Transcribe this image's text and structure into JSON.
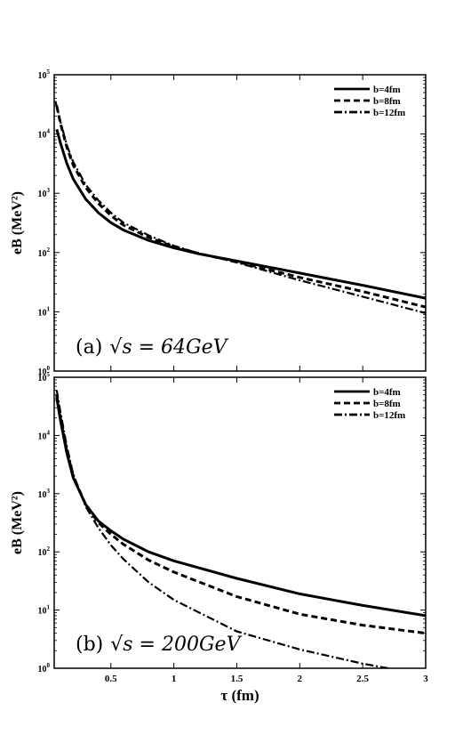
{
  "chart_data": [
    {
      "type": "line",
      "annotation": {
        "prefix": "(a)",
        "math": "√s = 64GeV"
      },
      "xlabel": "τ (fm)",
      "ylabel": "eB (MeV²)",
      "xlim": [
        0.05,
        3
      ],
      "ylim": [
        1,
        100000
      ],
      "yscale": "log",
      "legend": "top-right",
      "series": [
        {
          "name": "b=4fm",
          "style": "solid",
          "x": [
            0.07,
            0.1,
            0.15,
            0.2,
            0.3,
            0.4,
            0.5,
            0.6,
            0.8,
            1.0,
            1.2,
            1.5,
            2.0,
            2.5,
            3.0
          ],
          "y": [
            12000,
            7000,
            3200,
            1750,
            800,
            470,
            320,
            240,
            160,
            120,
            95,
            72,
            45,
            28,
            17
          ]
        },
        {
          "name": "b=8fm",
          "style": "dash",
          "x": [
            0.07,
            0.1,
            0.15,
            0.2,
            0.3,
            0.4,
            0.5,
            0.6,
            0.8,
            1.0,
            1.2,
            1.5,
            2.0,
            2.5,
            3.0
          ],
          "y": [
            30000,
            15000,
            6000,
            3000,
            1250,
            680,
            420,
            290,
            180,
            125,
            96,
            70,
            38,
            22,
            12
          ]
        },
        {
          "name": "b=12fm",
          "style": "dashdot",
          "x": [
            0.06,
            0.1,
            0.15,
            0.2,
            0.3,
            0.4,
            0.5,
            0.6,
            0.8,
            1.0,
            1.2,
            1.5,
            2.0,
            2.5,
            3.0
          ],
          "y": [
            36000,
            16000,
            6500,
            3400,
            1400,
            760,
            470,
            320,
            195,
            130,
            97,
            68,
            34,
            18,
            9.5
          ]
        }
      ]
    },
    {
      "type": "line",
      "annotation": {
        "prefix": "(b)",
        "math": "√s = 200GeV"
      },
      "xlabel": "τ (fm)",
      "ylabel": "eB (MeV²)",
      "xlim": [
        0.05,
        3
      ],
      "ylim": [
        1,
        100000
      ],
      "yscale": "log",
      "legend": "top-right",
      "series": [
        {
          "name": "b=4fm",
          "style": "solid",
          "x": [
            0.07,
            0.1,
            0.15,
            0.2,
            0.3,
            0.4,
            0.5,
            0.6,
            0.8,
            1.0,
            1.5,
            2.0,
            2.5,
            3.0
          ],
          "y": [
            45000,
            18000,
            5000,
            1900,
            650,
            340,
            230,
            165,
            100,
            70,
            35,
            19,
            12,
            8
          ]
        },
        {
          "name": "b=8fm",
          "style": "dash",
          "x": [
            0.07,
            0.1,
            0.15,
            0.2,
            0.3,
            0.4,
            0.5,
            0.6,
            0.8,
            1.0,
            1.5,
            2.0,
            2.5,
            3.0
          ],
          "y": [
            50000,
            20000,
            5500,
            2000,
            650,
            320,
            200,
            135,
            72,
            45,
            17,
            8.5,
            5.5,
            4
          ]
        },
        {
          "name": "b=12fm",
          "style": "dashdot",
          "x": [
            0.07,
            0.1,
            0.15,
            0.2,
            0.3,
            0.4,
            0.5,
            0.6,
            0.8,
            1.0,
            1.5,
            2.0,
            2.5,
            2.7,
            3.0
          ],
          "y": [
            60000,
            25000,
            6500,
            2200,
            600,
            260,
            130,
            75,
            30,
            15,
            4.3,
            2.1,
            1.2,
            1.0,
            0.8
          ]
        }
      ]
    }
  ],
  "xticks": [
    {
      "v": 0.5,
      "label": "0.5"
    },
    {
      "v": 1,
      "label": "1"
    },
    {
      "v": 1.5,
      "label": "1.5"
    },
    {
      "v": 2,
      "label": "2"
    },
    {
      "v": 2.5,
      "label": "2.5"
    },
    {
      "v": 3,
      "label": "3"
    }
  ],
  "yticks": [
    {
      "v": 1,
      "label": "10",
      "exp": "0"
    },
    {
      "v": 10,
      "label": "10",
      "exp": "1"
    },
    {
      "v": 100,
      "label": "10",
      "exp": "2"
    },
    {
      "v": 1000,
      "label": "10",
      "exp": "3"
    },
    {
      "v": 10000,
      "label": "10",
      "exp": "4"
    },
    {
      "v": 100000,
      "label": "10",
      "exp": "5"
    }
  ]
}
